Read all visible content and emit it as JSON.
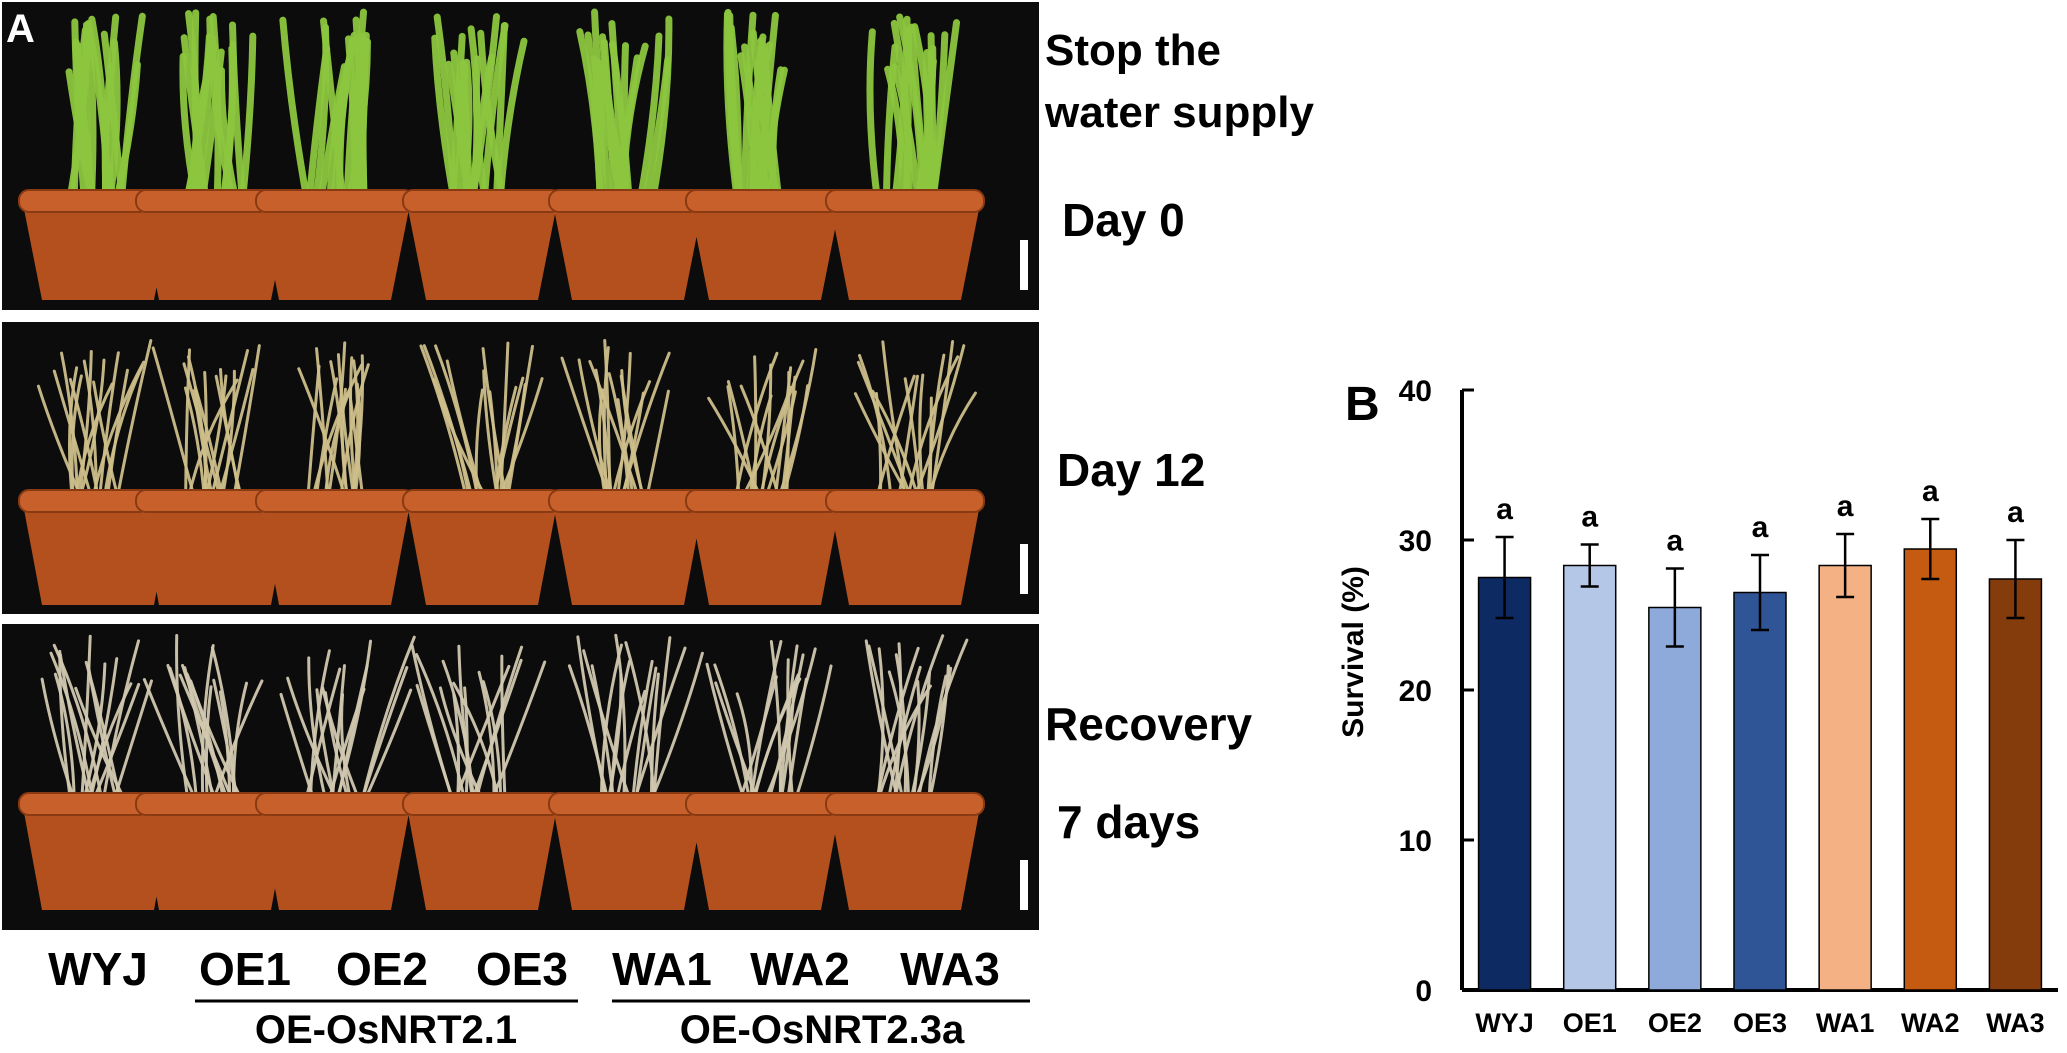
{
  "panel_a": {
    "letter": "A",
    "rows": [
      {
        "label_lines": [
          "Stop the",
          "water supply",
          "Day 0"
        ],
        "stage": "green"
      },
      {
        "label_lines": [
          "Day 12"
        ],
        "stage": "dry"
      },
      {
        "label_lines": [
          "Recovery",
          "7 days"
        ],
        "stage": "dead"
      }
    ],
    "genotypes": [
      "WYJ",
      "OE1",
      "OE2",
      "OE3",
      "WA1",
      "WA2",
      "WA3"
    ],
    "groups": [
      {
        "name": "OE-OsNRT2.1",
        "members": [
          "OE1",
          "OE2",
          "OE3"
        ]
      },
      {
        "name": "OE-OsNRT2.3a",
        "members": [
          "WA1",
          "WA2",
          "WA3"
        ]
      }
    ],
    "colors": {
      "background": "#0c0c0c",
      "pot": "#b4501e",
      "pot_rim": "#c8602c",
      "green_leaf": "#8cc63f",
      "dry_leaf": "#cdbf8a",
      "dead_leaf": "#d2c8b0"
    }
  },
  "panel_b": {
    "letter": "B",
    "chart_data": {
      "type": "bar",
      "categories": [
        "WYJ",
        "OE1",
        "OE2",
        "OE3",
        "WA1",
        "WA2",
        "WA3"
      ],
      "values": [
        27.5,
        28.3,
        25.5,
        26.5,
        28.3,
        29.4,
        27.4
      ],
      "errors": [
        2.7,
        1.4,
        2.6,
        2.5,
        2.1,
        2.0,
        2.6
      ],
      "significance": [
        "a",
        "a",
        "a",
        "a",
        "a",
        "a",
        "a"
      ],
      "colors": [
        "#0e2a63",
        "#b4c7e7",
        "#8eaadb",
        "#2f5597",
        "#f4b183",
        "#c55a11",
        "#843c0c"
      ],
      "ylabel": "Survival (%)",
      "xlabel": "",
      "ylim": [
        0,
        40
      ],
      "yticks": [
        0,
        10,
        20,
        30,
        40
      ],
      "grid": false
    }
  }
}
